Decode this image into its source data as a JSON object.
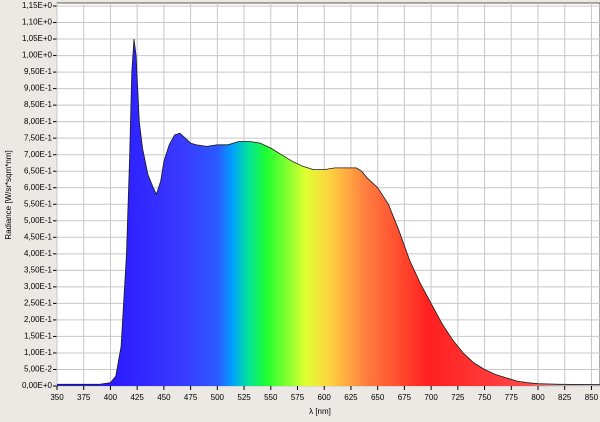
{
  "chart_data": {
    "type": "area",
    "x_label": "λ [nm]",
    "y_label": "Radiance [W/sr*sqm*nm]",
    "x": [
      350,
      375,
      390,
      400,
      405,
      410,
      415,
      418,
      420,
      422,
      424,
      427,
      430,
      435,
      440,
      443,
      447,
      450,
      455,
      460,
      465,
      470,
      475,
      480,
      490,
      500,
      510,
      520,
      530,
      540,
      550,
      560,
      570,
      580,
      590,
      600,
      610,
      620,
      630,
      635,
      640,
      650,
      660,
      670,
      680,
      690,
      700,
      710,
      720,
      730,
      740,
      750,
      760,
      770,
      780,
      790,
      800,
      820,
      858
    ],
    "values": [
      0.005,
      0.005,
      0.005,
      0.01,
      0.03,
      0.12,
      0.4,
      0.7,
      0.95,
      1.05,
      1.0,
      0.8,
      0.72,
      0.64,
      0.6,
      0.58,
      0.62,
      0.68,
      0.73,
      0.76,
      0.765,
      0.75,
      0.735,
      0.73,
      0.725,
      0.73,
      0.73,
      0.74,
      0.74,
      0.735,
      0.72,
      0.7,
      0.68,
      0.665,
      0.655,
      0.655,
      0.66,
      0.66,
      0.66,
      0.65,
      0.63,
      0.6,
      0.55,
      0.47,
      0.38,
      0.31,
      0.25,
      0.19,
      0.14,
      0.1,
      0.07,
      0.05,
      0.035,
      0.025,
      0.015,
      0.01,
      0.007,
      0.005,
      0.004
    ],
    "line_color": "#1a1a1a",
    "xlim": [
      350,
      858
    ],
    "xticks": [
      350,
      375,
      400,
      425,
      450,
      475,
      500,
      525,
      550,
      575,
      600,
      625,
      650,
      675,
      700,
      725,
      750,
      775,
      800,
      825,
      850
    ],
    "ylim": [
      0,
      1.15
    ],
    "yticks": [
      {
        "value": 0,
        "label": "0,00E+0"
      },
      {
        "value": 0.05,
        "label": "5,00E-2"
      },
      {
        "value": 0.1,
        "label": "1,00E-1"
      },
      {
        "value": 0.15,
        "label": "1,50E-1"
      },
      {
        "value": 0.2,
        "label": "2,00E-1"
      },
      {
        "value": 0.25,
        "label": "2,50E-1"
      },
      {
        "value": 0.3,
        "label": "3,00E-1"
      },
      {
        "value": 0.35,
        "label": "3,50E-1"
      },
      {
        "value": 0.4,
        "label": "4,00E-1"
      },
      {
        "value": 0.45,
        "label": "4,50E-1"
      },
      {
        "value": 0.5,
        "label": "5,00E-1"
      },
      {
        "value": 0.55,
        "label": "5,50E-1"
      },
      {
        "value": 0.6,
        "label": "6,00E-1"
      },
      {
        "value": 0.65,
        "label": "6,50E-1"
      },
      {
        "value": 0.7,
        "label": "7,00E-1"
      },
      {
        "value": 0.75,
        "label": "7,50E-1"
      },
      {
        "value": 0.8,
        "label": "8,00E-1"
      },
      {
        "value": 0.85,
        "label": "8,50E-1"
      },
      {
        "value": 0.9,
        "label": "9,00E-1"
      },
      {
        "value": 0.95,
        "label": "9,50E-1"
      },
      {
        "value": 1.0,
        "label": "1,00E+0"
      },
      {
        "value": 1.05,
        "label": "1,05E+0"
      },
      {
        "value": 1.1,
        "label": "1,10E+0"
      },
      {
        "value": 1.15,
        "label": "1,15E+0"
      }
    ],
    "grid": true
  }
}
